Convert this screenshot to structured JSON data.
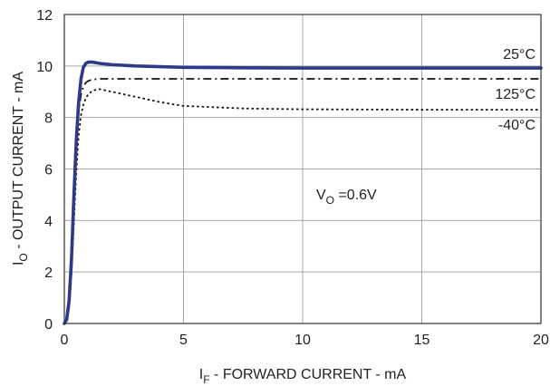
{
  "chart_data": {
    "type": "line",
    "xlim": [
      0,
      20
    ],
    "ylim": [
      0,
      12
    ],
    "x_ticks": [
      0,
      5,
      10,
      15,
      20
    ],
    "y_ticks": [
      0,
      2,
      4,
      6,
      8,
      10,
      12
    ],
    "x_tick_labels": [
      "0",
      "5",
      "10",
      "15",
      "20"
    ],
    "y_tick_labels": [
      "0",
      "2",
      "4",
      "6",
      "8",
      "10",
      "12"
    ],
    "xlabel": {
      "prefix": "I",
      "sub": "F",
      "rest": " - FORWARD CURRENT - mA"
    },
    "ylabel": {
      "prefix": "I",
      "sub": "O",
      "rest": " - OUTPUT CURRENT - mA"
    },
    "grid": true,
    "legend": "none",
    "annotation": {
      "prefix": "V",
      "sub": "O",
      "rest": " =0.6V"
    },
    "series": [
      {
        "name": "25°C",
        "style": "solid",
        "color": "#2e3a87",
        "x": [
          0,
          0.1,
          0.2,
          0.3,
          0.4,
          0.5,
          0.6,
          0.7,
          0.8,
          0.9,
          1.0,
          1.2,
          1.5,
          2.0,
          3.0,
          5.0,
          7.5,
          10.0,
          15.0,
          20.0
        ],
        "y": [
          0,
          0.15,
          0.9,
          2.5,
          4.9,
          7.1,
          8.6,
          9.5,
          9.95,
          10.1,
          10.15,
          10.15,
          10.1,
          10.05,
          10.0,
          9.95,
          9.93,
          9.92,
          9.92,
          9.92
        ]
      },
      {
        "name": "125°C",
        "style": "dashdot",
        "color": "#111111",
        "x": [
          0,
          0.1,
          0.2,
          0.3,
          0.4,
          0.5,
          0.6,
          0.7,
          0.8,
          0.9,
          1.0,
          1.2,
          1.5,
          2.0,
          3.0,
          5.0,
          7.5,
          10.0,
          15.0,
          20.0
        ],
        "y": [
          0,
          0.12,
          0.8,
          2.3,
          4.6,
          6.8,
          8.2,
          8.9,
          9.2,
          9.35,
          9.42,
          9.48,
          9.5,
          9.5,
          9.5,
          9.5,
          9.5,
          9.5,
          9.5,
          9.5
        ]
      },
      {
        "name": "-40°C",
        "style": "dotted",
        "color": "#111111",
        "x": [
          0,
          0.1,
          0.2,
          0.3,
          0.4,
          0.5,
          0.6,
          0.7,
          0.8,
          0.9,
          1.0,
          1.2,
          1.5,
          2.0,
          3.0,
          4.0,
          5.0,
          7.5,
          10.0,
          15.0,
          20.0
        ],
        "y": [
          0,
          0.1,
          0.6,
          1.9,
          3.9,
          5.9,
          7.3,
          8.1,
          8.5,
          8.75,
          8.9,
          9.05,
          9.1,
          9.0,
          8.8,
          8.6,
          8.45,
          8.35,
          8.32,
          8.3,
          8.3
        ]
      }
    ]
  }
}
